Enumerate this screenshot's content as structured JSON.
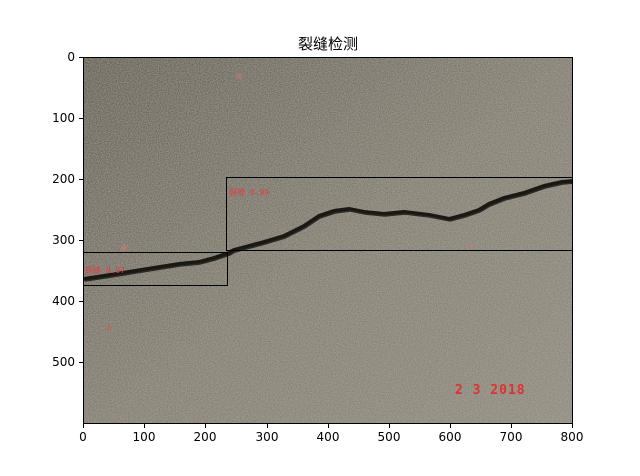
{
  "figure": {
    "title": "裂缝检测",
    "x_ticks": [
      "0",
      "100",
      "200",
      "300",
      "400",
      "500",
      "600",
      "700",
      "800"
    ],
    "y_ticks": [
      "0",
      "100",
      "200",
      "300",
      "400",
      "500"
    ],
    "x_range": [
      0,
      800
    ],
    "y_range": [
      600,
      0
    ]
  },
  "image": {
    "description_colors": {
      "asphalt": "#7a7468",
      "crack": "#1a1814",
      "label": "#e04040"
    },
    "date_stamp": "2 3 2018"
  },
  "detections": [
    {
      "label": "裂缝 0.99",
      "x_range": [
        233,
        800
      ],
      "y_range": [
        195,
        315
      ]
    },
    {
      "label": "裂缝 0.97",
      "x_range": [
        0,
        233
      ],
      "y_range": [
        318,
        372
      ]
    }
  ]
}
